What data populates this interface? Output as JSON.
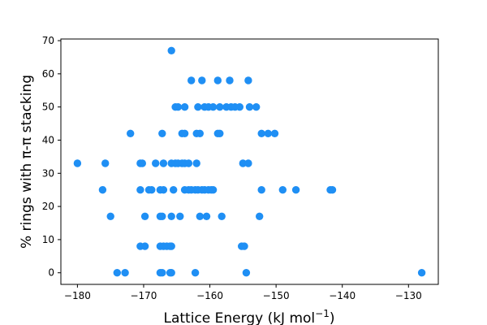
{
  "chart_data": {
    "type": "scatter",
    "xlabel": "Lattice Energy (kJ mol",
    "xlabel_sup": "−1",
    "xlabel_close": ")",
    "ylabel": "% rings with π-π stacking",
    "xlim": [
      -182.5,
      -125.5
    ],
    "ylim": [
      -3.5,
      70.5
    ],
    "xticks": [
      -180,
      -170,
      -160,
      -150,
      -140,
      -130
    ],
    "xtick_labels": [
      "−180",
      "−170",
      "−160",
      "−150",
      "−140",
      "−130"
    ],
    "yticks": [
      0,
      10,
      20,
      30,
      40,
      50,
      60,
      70
    ],
    "ytick_labels": [
      "0",
      "10",
      "20",
      "30",
      "40",
      "50",
      "60",
      "70"
    ],
    "grid": false,
    "marker_color": "#1f8ff4",
    "points": [
      [
        -165.8,
        67
      ],
      [
        -162.8,
        58
      ],
      [
        -161.2,
        58
      ],
      [
        -158.8,
        58
      ],
      [
        -157.0,
        58
      ],
      [
        -154.2,
        58
      ],
      [
        -165.2,
        50
      ],
      [
        -164.8,
        50
      ],
      [
        -163.8,
        50
      ],
      [
        -161.8,
        50
      ],
      [
        -160.8,
        50
      ],
      [
        -160.2,
        50
      ],
      [
        -159.5,
        50
      ],
      [
        -158.5,
        50
      ],
      [
        -157.5,
        50
      ],
      [
        -156.8,
        50
      ],
      [
        -156.2,
        50
      ],
      [
        -155.5,
        50
      ],
      [
        -154.0,
        50
      ],
      [
        -153.0,
        50
      ],
      [
        -172.0,
        42
      ],
      [
        -167.2,
        42
      ],
      [
        -164.2,
        42
      ],
      [
        -163.8,
        42
      ],
      [
        -162.0,
        42
      ],
      [
        -161.5,
        42
      ],
      [
        -158.8,
        42
      ],
      [
        -158.5,
        42
      ],
      [
        -152.2,
        42
      ],
      [
        -151.2,
        42
      ],
      [
        -150.2,
        42
      ],
      [
        -180.0,
        33
      ],
      [
        -175.8,
        33
      ],
      [
        -170.5,
        33
      ],
      [
        -170.2,
        33
      ],
      [
        -168.2,
        33
      ],
      [
        -167.0,
        33
      ],
      [
        -165.8,
        33
      ],
      [
        -165.2,
        33
      ],
      [
        -164.8,
        33
      ],
      [
        -164.2,
        33
      ],
      [
        -163.8,
        33
      ],
      [
        -163.2,
        33
      ],
      [
        -162.0,
        33
      ],
      [
        -155.0,
        33
      ],
      [
        -154.2,
        33
      ],
      [
        -176.2,
        25
      ],
      [
        -170.5,
        25
      ],
      [
        -169.2,
        25
      ],
      [
        -168.8,
        25
      ],
      [
        -167.5,
        25
      ],
      [
        -167.0,
        25
      ],
      [
        -165.5,
        25
      ],
      [
        -163.8,
        25
      ],
      [
        -163.2,
        25
      ],
      [
        -162.8,
        25
      ],
      [
        -162.2,
        25
      ],
      [
        -161.8,
        25
      ],
      [
        -161.2,
        25
      ],
      [
        -160.8,
        25
      ],
      [
        -160.2,
        25
      ],
      [
        -159.8,
        25
      ],
      [
        -159.5,
        25
      ],
      [
        -152.2,
        25
      ],
      [
        -149.0,
        25
      ],
      [
        -147.0,
        25
      ],
      [
        -141.8,
        25
      ],
      [
        -141.5,
        25
      ],
      [
        -175.0,
        17
      ],
      [
        -169.8,
        17
      ],
      [
        -167.5,
        17
      ],
      [
        -167.2,
        17
      ],
      [
        -165.8,
        17
      ],
      [
        -164.5,
        17
      ],
      [
        -161.5,
        17
      ],
      [
        -160.5,
        17
      ],
      [
        -158.2,
        17
      ],
      [
        -152.5,
        17
      ],
      [
        -170.5,
        8
      ],
      [
        -169.8,
        8
      ],
      [
        -167.5,
        8
      ],
      [
        -167.0,
        8
      ],
      [
        -166.5,
        8
      ],
      [
        -166.0,
        8
      ],
      [
        -165.8,
        8
      ],
      [
        -155.2,
        8
      ],
      [
        -154.8,
        8
      ],
      [
        -174.0,
        0
      ],
      [
        -172.8,
        0
      ],
      [
        -167.5,
        0
      ],
      [
        -167.2,
        0
      ],
      [
        -166.0,
        0
      ],
      [
        -165.8,
        0
      ],
      [
        -162.2,
        0
      ],
      [
        -154.5,
        0
      ],
      [
        -128.0,
        0
      ]
    ]
  }
}
